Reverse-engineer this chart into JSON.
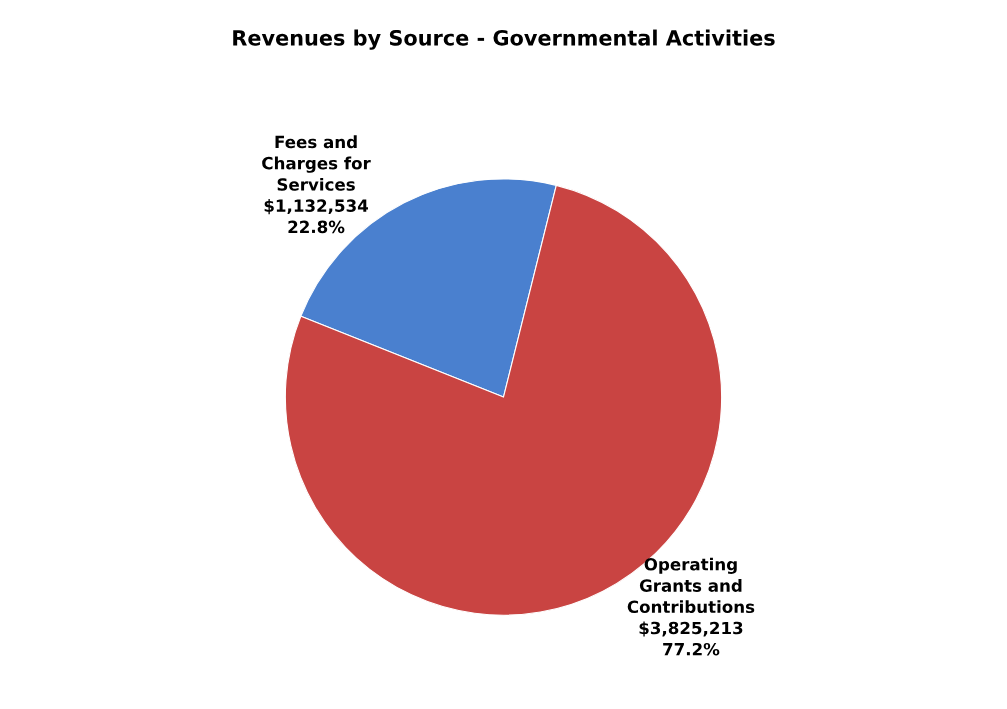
{
  "chart_data": {
    "type": "pie",
    "title": "Revenues by Source - Governmental Activities",
    "categories": [
      "Fees and Charges for Services",
      "Operating Grants and Contributions"
    ],
    "values": [
      1132534,
      3825213
    ],
    "value_labels": [
      "$1,132,534\n22.8%",
      "$3,825,213\n77.2%"
    ],
    "colors": [
      "#4a80cf",
      "#c94442"
    ],
    "legend": false
  }
}
